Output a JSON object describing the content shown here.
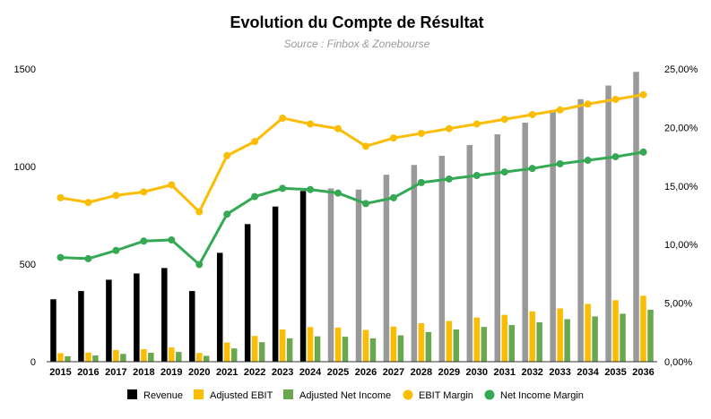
{
  "chart_data": {
    "type": "bar",
    "title": "Evolution du Compte de Résultat",
    "subtitle": "Source : Finbox & Zonebourse",
    "categories": [
      "2015",
      "2016",
      "2017",
      "2018",
      "2019",
      "2020",
      "2021",
      "2022",
      "2023",
      "2024",
      "2025",
      "2026",
      "2027",
      "2028",
      "2029",
      "2030",
      "2031",
      "2032",
      "2033",
      "2034",
      "2035",
      "2036"
    ],
    "ylim": [
      0,
      1500
    ],
    "y_ticks": [
      "0",
      "500",
      "1000",
      "1500"
    ],
    "y2lim": [
      0,
      25
    ],
    "y2_ticks": [
      "0,00%",
      "5,00%",
      "10,00%",
      "15,00%",
      "20,00%",
      "25,00%"
    ],
    "grid": false,
    "legend_position": "bottom",
    "series": [
      {
        "name": "Revenue",
        "kind": "bar",
        "axis": "left",
        "colors": {
          "actual": "#000000",
          "forecast": "#999999"
        },
        "actual_until": "2024",
        "values": [
          320,
          362,
          420,
          452,
          480,
          362,
          558,
          705,
          795,
          875,
          888,
          882,
          958,
          1008,
          1055,
          1110,
          1165,
          1225,
          1285,
          1345,
          1415,
          1485
        ]
      },
      {
        "name": "Adjusted EBIT",
        "kind": "bar",
        "axis": "left",
        "color": "#fbbc04",
        "values": [
          44,
          47,
          60,
          64,
          73,
          45,
          98,
          132,
          165,
          177,
          175,
          163,
          180,
          197,
          209,
          226,
          240,
          258,
          273,
          296,
          315,
          338
        ]
      },
      {
        "name": "Adjusted Net Income",
        "kind": "bar",
        "axis": "left",
        "color": "#6aa84f",
        "values": [
          28,
          32,
          40,
          46,
          50,
          30,
          68,
          100,
          120,
          130,
          128,
          120,
          135,
          152,
          165,
          178,
          188,
          202,
          218,
          232,
          246,
          266
        ]
      },
      {
        "name": "EBIT Margin",
        "kind": "line",
        "axis": "right",
        "color": "#fbbc04",
        "values": [
          14.0,
          13.6,
          14.2,
          14.5,
          15.1,
          12.8,
          17.6,
          18.8,
          20.8,
          20.3,
          19.9,
          18.4,
          19.1,
          19.5,
          19.9,
          20.3,
          20.7,
          21.1,
          21.5,
          22.0,
          22.4,
          22.8
        ]
      },
      {
        "name": "Net Income Margin",
        "kind": "line",
        "axis": "right",
        "color": "#34a853",
        "values": [
          8.9,
          8.8,
          9.5,
          10.3,
          10.4,
          8.3,
          12.6,
          14.1,
          14.8,
          14.7,
          14.4,
          13.5,
          14.0,
          15.3,
          15.6,
          15.9,
          16.2,
          16.5,
          16.9,
          17.2,
          17.5,
          17.9
        ]
      }
    ]
  }
}
